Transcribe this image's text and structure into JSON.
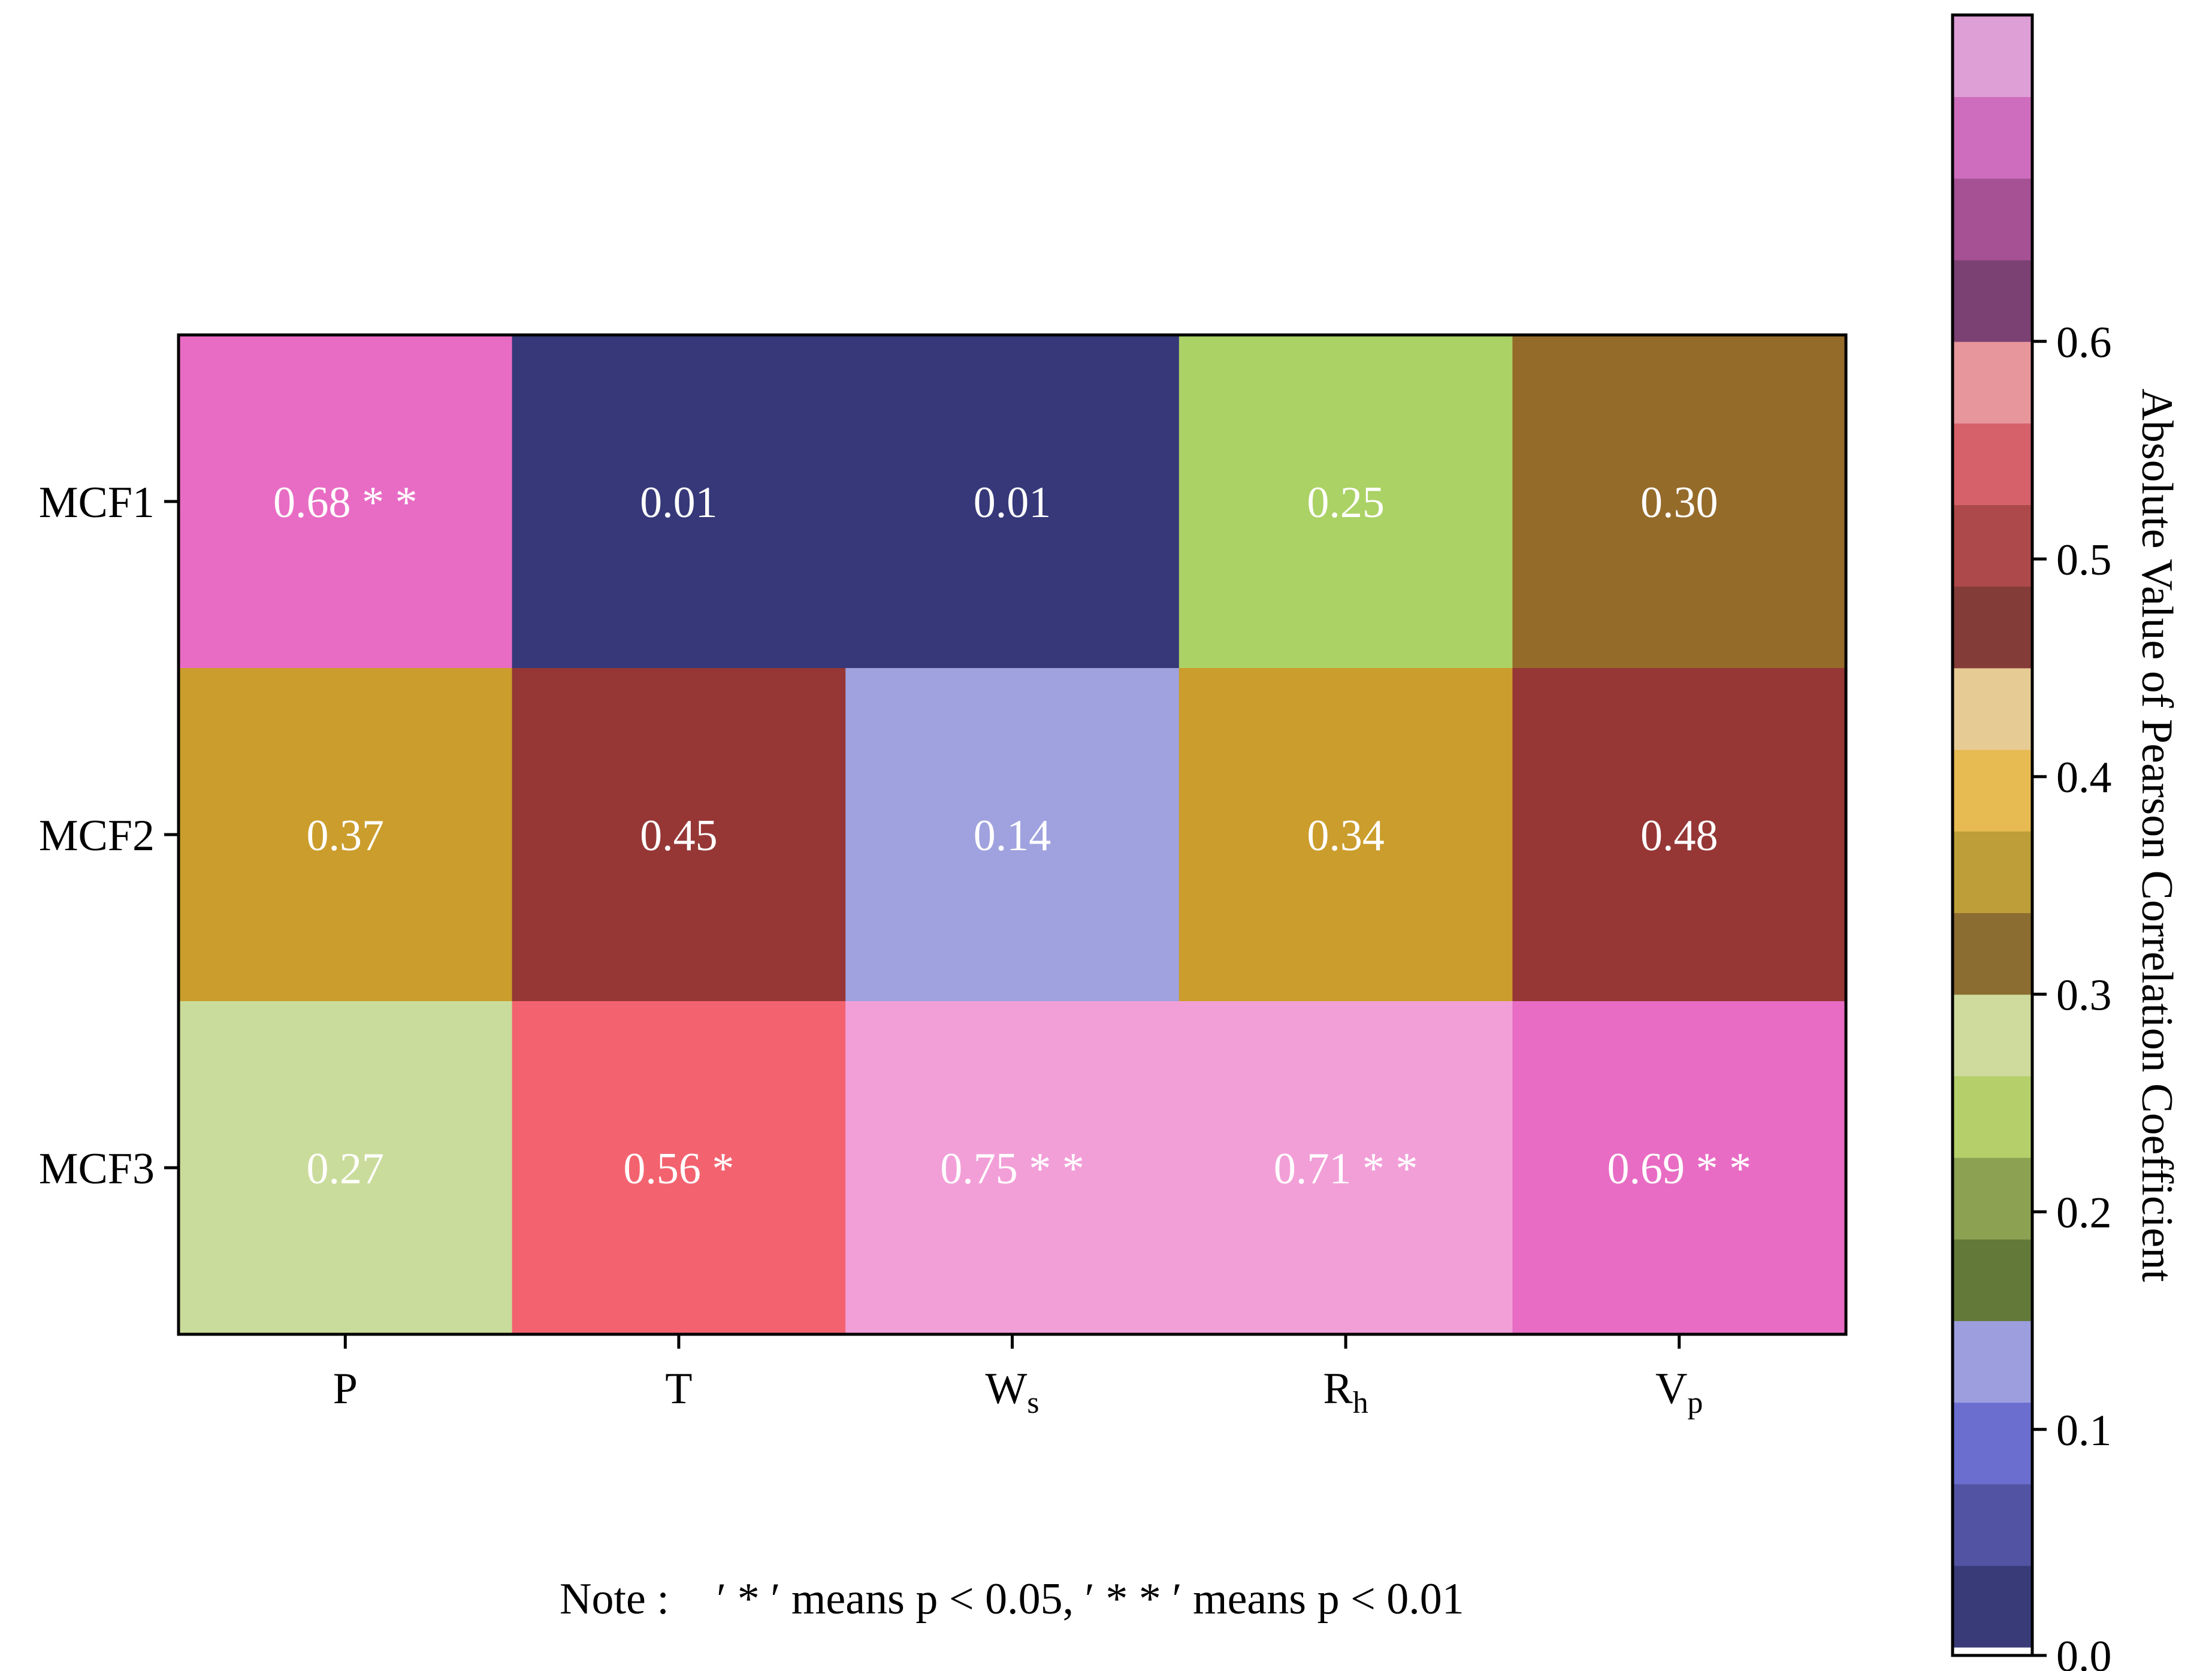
{
  "chart_data": {
    "type": "heatmap",
    "rows": [
      "MCF1",
      "MCF2",
      "MCF3"
    ],
    "columns": [
      {
        "base": "P",
        "sub": ""
      },
      {
        "base": "T",
        "sub": ""
      },
      {
        "base": "W",
        "sub": "s"
      },
      {
        "base": "R",
        "sub": "h"
      },
      {
        "base": "V",
        "sub": "p"
      }
    ],
    "values": [
      [
        0.68,
        0.01,
        0.01,
        0.25,
        0.3
      ],
      [
        0.37,
        0.45,
        0.14,
        0.34,
        0.48
      ],
      [
        0.27,
        0.56,
        0.75,
        0.71,
        0.69
      ]
    ],
    "cell_labels": [
      [
        "0.68 * *",
        "0.01",
        "0.01",
        "0.25",
        "0.30"
      ],
      [
        "0.37",
        "0.45",
        "0.14",
        "0.34",
        "0.48"
      ],
      [
        "0.27",
        "0.56 *",
        "0.75 * *",
        "0.71 * *",
        "0.69 * *"
      ]
    ],
    "colorbar": {
      "label": "Absolute Value of Pearson Correlation Coefficient",
      "range": [
        0.0,
        0.75
      ],
      "ticks": [
        0.0,
        0.1,
        0.2,
        0.3,
        0.4,
        0.5,
        0.6
      ],
      "tick_labels": [
        "0.0",
        "0.1",
        "0.2",
        "0.3",
        "0.4",
        "0.5",
        "0.6"
      ],
      "colors": [
        "#ffffff",
        "#393b79",
        "#5254a3",
        "#6b6ecf",
        "#9c9ede",
        "#637939",
        "#8ca252",
        "#b5cf6b",
        "#cedb9c",
        "#8c6d31",
        "#bd9e39",
        "#e7ba52",
        "#e7cb94",
        "#843c39",
        "#ad494a",
        "#d6616b",
        "#e7969c",
        "#7b4173",
        "#a55194",
        "#ce6dbd",
        "#de9ed6"
      ]
    },
    "cell_colors": [
      [
        "#e86cc4",
        "#363879",
        "#363879",
        "#abd265",
        "#956b2a"
      ],
      [
        "#cb9d2c",
        "#963736",
        "#a0a1df",
        "#cb9d2c",
        "#963736"
      ],
      [
        "#cadc9b",
        "#f3636f",
        "#f29fd8",
        "#f29fd8",
        "#e86cc4"
      ]
    ],
    "note": {
      "prefix": "Note :",
      "text": "′ * ′ means p < 0.05, ′ * * ′ means p < 0.01"
    }
  }
}
